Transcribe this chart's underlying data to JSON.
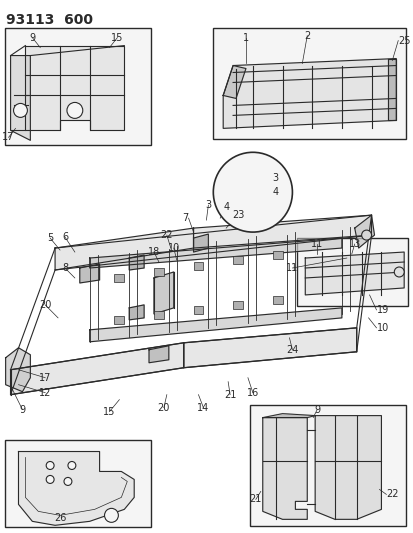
{
  "title": "93113  600",
  "bg_color": "#ffffff",
  "line_color": "#2a2a2a",
  "title_fontsize": 10,
  "label_fontsize": 7,
  "fig_width": 4.14,
  "fig_height": 5.33,
  "dpi": 100
}
